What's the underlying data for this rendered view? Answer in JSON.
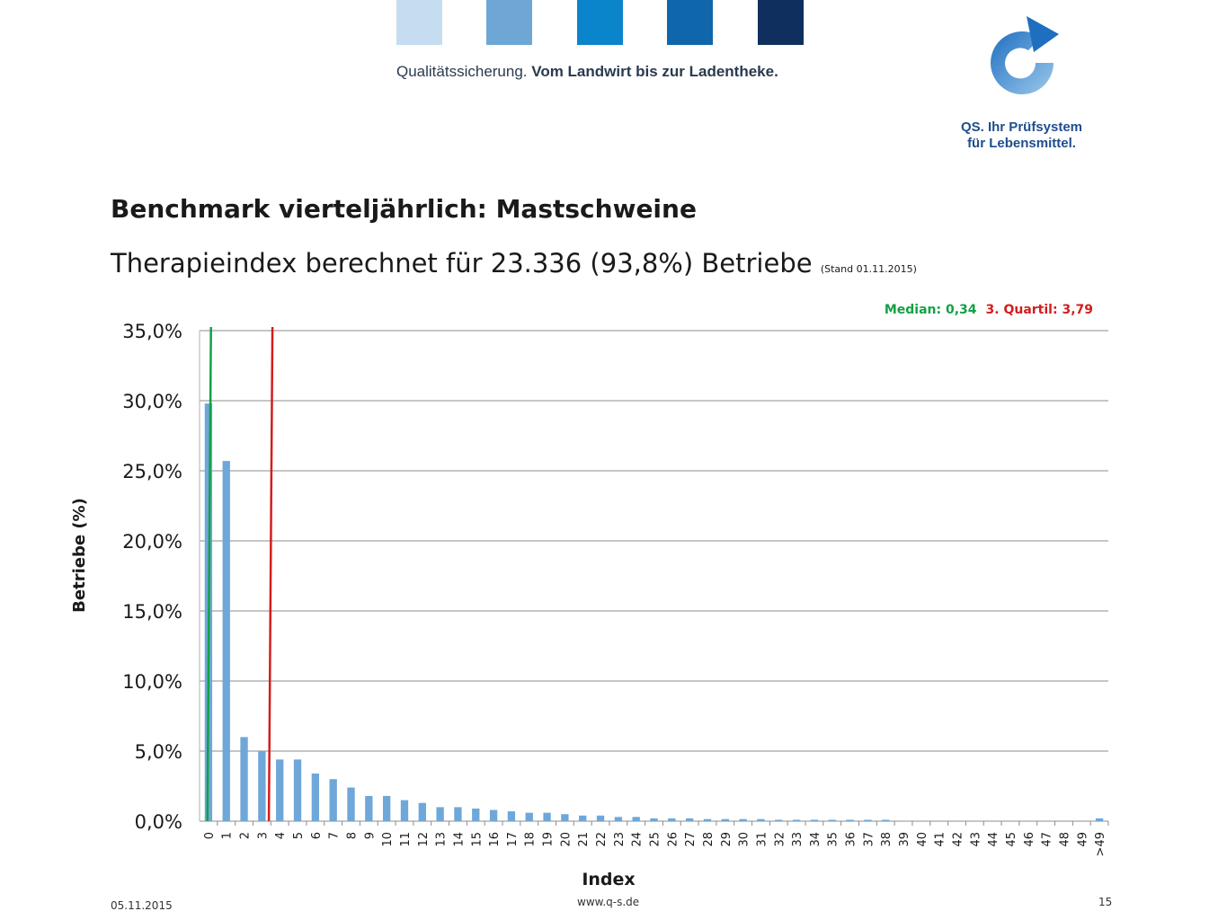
{
  "header": {
    "tagline_regular": "Qualitätssicherung. ",
    "tagline_bold": "Vom Landwirt bis zur Ladentheke.",
    "bar_colors": [
      "#c6dcf0",
      "#6ea7d6",
      "#0a85cc",
      "#0f66ab",
      "#0f2f5f"
    ],
    "logo_line1": "QS. Ihr Prüfsystem",
    "logo_line2": "für Lebensmittel."
  },
  "slide": {
    "title": "Benchmark vierteljährlich: Mastschweine",
    "subtitle": "Therapieindex berechnet für 23.336 (93,8%) Betriebe",
    "subtitle_note": "(Stand 01.11.2015)",
    "median_label": "Median:  0,34",
    "quartil_label": "3. Quartil:  3,79"
  },
  "footer": {
    "date": "05.11.2015",
    "url": "www.q-s.de",
    "page": "15"
  },
  "chart_data": {
    "type": "bar",
    "xlabel": "Index",
    "ylabel": "Betriebe (%)",
    "ylim": [
      0,
      35
    ],
    "yticks": [
      "0,0%",
      "5,0%",
      "10,0%",
      "15,0%",
      "20,0%",
      "25,0%",
      "30,0%",
      "35,0%"
    ],
    "grid": true,
    "bar_color": "#6fa7d9",
    "categories": [
      "0",
      "1",
      "2",
      "3",
      "4",
      "5",
      "6",
      "7",
      "8",
      "9",
      "10",
      "11",
      "12",
      "13",
      "14",
      "15",
      "16",
      "17",
      "18",
      "19",
      "20",
      "21",
      "22",
      "23",
      "24",
      "25",
      "26",
      "27",
      "28",
      "29",
      "30",
      "31",
      "32",
      "33",
      "34",
      "35",
      "36",
      "37",
      "38",
      "39",
      "40",
      "41",
      "42",
      "43",
      "44",
      "45",
      "46",
      "47",
      "48",
      "49",
      ">49"
    ],
    "values": [
      29.8,
      25.7,
      6.0,
      5.0,
      4.4,
      4.4,
      3.4,
      3.0,
      2.4,
      1.8,
      1.8,
      1.5,
      1.3,
      1.0,
      1.0,
      0.9,
      0.8,
      0.7,
      0.6,
      0.6,
      0.5,
      0.4,
      0.4,
      0.3,
      0.3,
      0.2,
      0.2,
      0.2,
      0.15,
      0.15,
      0.15,
      0.15,
      0.1,
      0.1,
      0.1,
      0.1,
      0.1,
      0.1,
      0.1,
      0.0,
      0.0,
      0.0,
      0.0,
      0.0,
      0.0,
      0.0,
      0.0,
      0.0,
      0.0,
      0.0,
      0.2
    ],
    "reference_lines": [
      {
        "name": "Median",
        "value": 0.34,
        "color": "#14a046"
      },
      {
        "name": "3. Quartil",
        "value": 3.79,
        "color": "#d21e1e"
      }
    ]
  }
}
